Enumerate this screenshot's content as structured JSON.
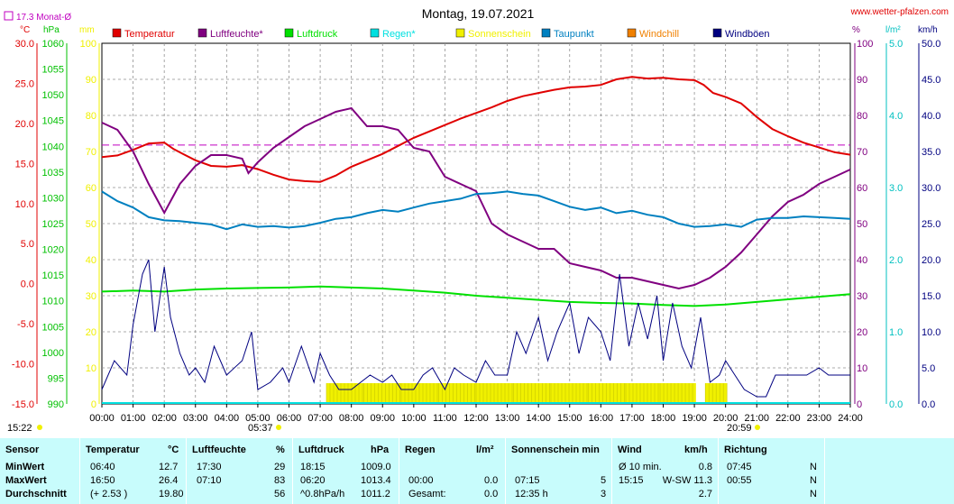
{
  "header": {
    "title": "Montag, 19.07.2021",
    "site": "www.wetter-pfalzen.com",
    "month_avg_label": "17.3 Monat-Ø"
  },
  "axes": {
    "temp_unit": "°C",
    "pressure_unit": "hPa",
    "mm_unit": "mm",
    "humidity_unit": "%",
    "rain_unit": "l/m²",
    "wind_unit": "km/h",
    "temp_ticks": [
      "30.0",
      "25.0",
      "20.0",
      "15.0",
      "10.0",
      "5.0",
      "0.0",
      "-5.0",
      "-10.0",
      "-15.0"
    ],
    "pressure_ticks": [
      "1060",
      "1055",
      "1050",
      "1045",
      "1040",
      "1035",
      "1030",
      "1025",
      "1020",
      "1015",
      "1010",
      "1005",
      "1000",
      "995",
      "990"
    ],
    "mm_ticks": [
      "100",
      "90",
      "80",
      "70",
      "60",
      "50",
      "40",
      "30",
      "20",
      "10",
      "0"
    ],
    "humidity_ticks": [
      "100",
      "90",
      "80",
      "70",
      "60",
      "50",
      "40",
      "30",
      "20",
      "10",
      "0"
    ],
    "rain_ticks": [
      "5.0",
      "4.0",
      "3.0",
      "2.0",
      "1.0",
      "0.0"
    ],
    "wind_ticks": [
      "50.0",
      "45.0",
      "40.0",
      "35.0",
      "30.0",
      "25.0",
      "20.0",
      "15.0",
      "10.0",
      "5.0",
      "0.0"
    ],
    "time_ticks": [
      "00:00",
      "01:00",
      "02:00",
      "03:00",
      "04:00",
      "05:00",
      "06:00",
      "07:00",
      "08:00",
      "09:00",
      "10:00",
      "11:00",
      "12:00",
      "13:00",
      "14:00",
      "15:00",
      "16:00",
      "17:00",
      "18:00",
      "19:00",
      "20:00",
      "21:00",
      "22:00",
      "23:00",
      "24:00"
    ],
    "sunrise": "05:37",
    "sunset": "20:59",
    "moonrise": "15:22"
  },
  "legend": [
    {
      "label": "Temperatur",
      "color": "#e00000"
    },
    {
      "label": "Luftfeuchte*",
      "color": "#800080"
    },
    {
      "label": "Luftdruck",
      "color": "#00e000"
    },
    {
      "label": "Regen*",
      "color": "#00e0e0"
    },
    {
      "label": "Sonnenschein",
      "color": "#f0f000"
    },
    {
      "label": "Taupunkt",
      "color": "#0080c0"
    },
    {
      "label": "Windchill",
      "color": "#f08000"
    },
    {
      "label": "Windböen",
      "color": "#000080"
    }
  ],
  "colors": {
    "temp_axis": "#e00000",
    "pressure_axis": "#00c000",
    "mm_axis": "#f0f000",
    "humidity_axis": "#800080",
    "rain_axis": "#00c0c0",
    "wind_axis": "#000080",
    "month_avg": "#c000c0",
    "grid": "#909090"
  },
  "chart_data": {
    "type": "line",
    "x_unit": "hours",
    "month_avg_temp": 17.3,
    "series": [
      {
        "name": "Temperatur",
        "axis": "temp",
        "color": "#e00000",
        "points": [
          [
            0,
            15.8
          ],
          [
            0.5,
            16.0
          ],
          [
            1,
            16.7
          ],
          [
            1.5,
            17.5
          ],
          [
            2,
            17.6
          ],
          [
            2.3,
            16.8
          ],
          [
            2.6,
            16.2
          ],
          [
            3,
            15.4
          ],
          [
            3.5,
            14.7
          ],
          [
            4,
            14.6
          ],
          [
            4.5,
            14.8
          ],
          [
            5,
            14.3
          ],
          [
            5.5,
            13.6
          ],
          [
            6,
            13.0
          ],
          [
            6.5,
            12.8
          ],
          [
            7,
            12.7
          ],
          [
            7.5,
            13.5
          ],
          [
            8,
            14.6
          ],
          [
            8.5,
            15.4
          ],
          [
            9,
            16.2
          ],
          [
            9.5,
            17.2
          ],
          [
            10,
            18.2
          ],
          [
            10.5,
            19.0
          ],
          [
            11,
            19.8
          ],
          [
            11.5,
            20.6
          ],
          [
            12,
            21.3
          ],
          [
            12.5,
            22.0
          ],
          [
            13,
            22.8
          ],
          [
            13.5,
            23.4
          ],
          [
            14,
            23.8
          ],
          [
            14.5,
            24.2
          ],
          [
            15,
            24.5
          ],
          [
            15.5,
            24.6
          ],
          [
            16,
            24.8
          ],
          [
            16.5,
            25.5
          ],
          [
            17,
            25.8
          ],
          [
            17.5,
            25.6
          ],
          [
            18,
            25.7
          ],
          [
            18.5,
            25.5
          ],
          [
            19,
            25.4
          ],
          [
            19.3,
            24.8
          ],
          [
            19.6,
            23.8
          ],
          [
            20,
            23.3
          ],
          [
            20.5,
            22.5
          ],
          [
            21,
            20.8
          ],
          [
            21.5,
            19.3
          ],
          [
            22,
            18.4
          ],
          [
            22.5,
            17.6
          ],
          [
            23,
            17.0
          ],
          [
            23.5,
            16.4
          ],
          [
            24,
            16.1
          ]
        ]
      },
      {
        "name": "Luftfeuchte*",
        "axis": "humidity",
        "color": "#800080",
        "points": [
          [
            0,
            78
          ],
          [
            0.5,
            76
          ],
          [
            1,
            70
          ],
          [
            1.5,
            61
          ],
          [
            2,
            53
          ],
          [
            2.5,
            61
          ],
          [
            3,
            66
          ],
          [
            3.5,
            69
          ],
          [
            4,
            69
          ],
          [
            4.5,
            68
          ],
          [
            4.7,
            64
          ],
          [
            5,
            67
          ],
          [
            5.5,
            71
          ],
          [
            6,
            74
          ],
          [
            6.5,
            77
          ],
          [
            7,
            79
          ],
          [
            7.5,
            81
          ],
          [
            8,
            82
          ],
          [
            8.5,
            77
          ],
          [
            9,
            77
          ],
          [
            9.5,
            76
          ],
          [
            10,
            71
          ],
          [
            10.5,
            70
          ],
          [
            11,
            63
          ],
          [
            11.5,
            61
          ],
          [
            12,
            59
          ],
          [
            12.5,
            50
          ],
          [
            13,
            47
          ],
          [
            13.5,
            45
          ],
          [
            14,
            43
          ],
          [
            14.5,
            43
          ],
          [
            15,
            39
          ],
          [
            15.5,
            38
          ],
          [
            16,
            37
          ],
          [
            16.5,
            35
          ],
          [
            17,
            35
          ],
          [
            17.5,
            34
          ],
          [
            18,
            33
          ],
          [
            18.5,
            32
          ],
          [
            19,
            33
          ],
          [
            19.5,
            35
          ],
          [
            20,
            38
          ],
          [
            20.5,
            42
          ],
          [
            21,
            47
          ],
          [
            21.5,
            52
          ],
          [
            22,
            56
          ],
          [
            22.5,
            58
          ],
          [
            23,
            61
          ],
          [
            23.5,
            63
          ],
          [
            24,
            65
          ]
        ]
      },
      {
        "name": "Luftdruck",
        "axis": "pressure",
        "color": "#00e000",
        "points": [
          [
            0,
            1011.8
          ],
          [
            1,
            1012.0
          ],
          [
            2,
            1011.8
          ],
          [
            3,
            1012.2
          ],
          [
            4,
            1012.4
          ],
          [
            5,
            1012.5
          ],
          [
            6,
            1012.6
          ],
          [
            7,
            1012.8
          ],
          [
            8,
            1012.6
          ],
          [
            9,
            1012.4
          ],
          [
            10,
            1012.0
          ],
          [
            11,
            1011.6
          ],
          [
            12,
            1011.0
          ],
          [
            13,
            1010.6
          ],
          [
            14,
            1010.2
          ],
          [
            15,
            1009.8
          ],
          [
            16,
            1009.6
          ],
          [
            17,
            1009.5
          ],
          [
            18,
            1009.2
          ],
          [
            19,
            1009.0
          ],
          [
            20,
            1009.3
          ],
          [
            21,
            1009.8
          ],
          [
            22,
            1010.3
          ],
          [
            23,
            1010.8
          ],
          [
            24,
            1011.3
          ]
        ]
      },
      {
        "name": "Taupunkt",
        "axis": "temp",
        "color": "#0080c0",
        "points": [
          [
            0,
            11.5
          ],
          [
            0.5,
            10.3
          ],
          [
            1,
            9.5
          ],
          [
            1.5,
            8.3
          ],
          [
            2,
            7.9
          ],
          [
            2.5,
            7.8
          ],
          [
            3,
            7.6
          ],
          [
            3.5,
            7.4
          ],
          [
            4,
            6.8
          ],
          [
            4.5,
            7.4
          ],
          [
            5,
            7.1
          ],
          [
            5.5,
            7.2
          ],
          [
            6,
            7.0
          ],
          [
            6.5,
            7.2
          ],
          [
            7,
            7.6
          ],
          [
            7.5,
            8.1
          ],
          [
            8,
            8.3
          ],
          [
            8.5,
            8.8
          ],
          [
            9,
            9.2
          ],
          [
            9.5,
            9.0
          ],
          [
            10,
            9.5
          ],
          [
            10.5,
            10.0
          ],
          [
            11,
            10.3
          ],
          [
            11.5,
            10.6
          ],
          [
            12,
            11.2
          ],
          [
            12.5,
            11.3
          ],
          [
            13,
            11.5
          ],
          [
            13.5,
            11.2
          ],
          [
            14,
            11.0
          ],
          [
            14.5,
            10.3
          ],
          [
            15,
            9.6
          ],
          [
            15.5,
            9.2
          ],
          [
            16,
            9.5
          ],
          [
            16.5,
            8.8
          ],
          [
            17,
            9.1
          ],
          [
            17.5,
            8.6
          ],
          [
            18,
            8.3
          ],
          [
            18.5,
            7.5
          ],
          [
            19,
            7.1
          ],
          [
            19.5,
            7.2
          ],
          [
            20,
            7.4
          ],
          [
            20.5,
            7.1
          ],
          [
            21,
            8.0
          ],
          [
            21.5,
            8.2
          ],
          [
            22,
            8.2
          ],
          [
            22.5,
            8.4
          ],
          [
            23,
            8.3
          ],
          [
            23.5,
            8.2
          ],
          [
            24,
            8.1
          ]
        ]
      },
      {
        "name": "Windböen",
        "axis": "wind",
        "color": "#000080",
        "points": [
          [
            0,
            2
          ],
          [
            0.4,
            6
          ],
          [
            0.8,
            4
          ],
          [
            1,
            11
          ],
          [
            1.3,
            18
          ],
          [
            1.5,
            20
          ],
          [
            1.7,
            10
          ],
          [
            2,
            19
          ],
          [
            2.2,
            12
          ],
          [
            2.5,
            7
          ],
          [
            2.8,
            4
          ],
          [
            3,
            5
          ],
          [
            3.3,
            3
          ],
          [
            3.6,
            8
          ],
          [
            4,
            4
          ],
          [
            4.5,
            6
          ],
          [
            4.8,
            10
          ],
          [
            5,
            2
          ],
          [
            5.4,
            3
          ],
          [
            5.8,
            5
          ],
          [
            6,
            3
          ],
          [
            6.4,
            8
          ],
          [
            6.8,
            3
          ],
          [
            7,
            7
          ],
          [
            7.3,
            4
          ],
          [
            7.6,
            2
          ],
          [
            8,
            2
          ],
          [
            8.3,
            3
          ],
          [
            8.6,
            4
          ],
          [
            9,
            3
          ],
          [
            9.3,
            4
          ],
          [
            9.6,
            2
          ],
          [
            10,
            2
          ],
          [
            10.3,
            4
          ],
          [
            10.6,
            5
          ],
          [
            11,
            2
          ],
          [
            11.3,
            5
          ],
          [
            11.6,
            4
          ],
          [
            12,
            3
          ],
          [
            12.3,
            6
          ],
          [
            12.6,
            4
          ],
          [
            13,
            4
          ],
          [
            13.3,
            10
          ],
          [
            13.6,
            7
          ],
          [
            14,
            12
          ],
          [
            14.3,
            6
          ],
          [
            14.6,
            10
          ],
          [
            15,
            14
          ],
          [
            15.3,
            7
          ],
          [
            15.6,
            12
          ],
          [
            16,
            10
          ],
          [
            16.3,
            6
          ],
          [
            16.6,
            18
          ],
          [
            16.9,
            8
          ],
          [
            17.2,
            14
          ],
          [
            17.5,
            9
          ],
          [
            17.8,
            15
          ],
          [
            18,
            6
          ],
          [
            18.3,
            14
          ],
          [
            18.6,
            8
          ],
          [
            18.9,
            5
          ],
          [
            19.2,
            12
          ],
          [
            19.5,
            3
          ],
          [
            19.8,
            4
          ],
          [
            20,
            6
          ],
          [
            20.3,
            4
          ],
          [
            20.6,
            2
          ],
          [
            21,
            1
          ],
          [
            21.3,
            1
          ],
          [
            21.6,
            4
          ],
          [
            22,
            4
          ],
          [
            22.3,
            4
          ],
          [
            22.6,
            4
          ],
          [
            23,
            5
          ],
          [
            23.3,
            4
          ],
          [
            23.6,
            4
          ],
          [
            24,
            4
          ]
        ]
      }
    ],
    "sunshine_bars": [
      [
        7.2,
        8.4
      ],
      [
        8.4,
        9.6
      ],
      [
        9.6,
        10.8
      ],
      [
        10.8,
        12.0
      ],
      [
        12.0,
        13.2
      ],
      [
        13.2,
        14.4
      ],
      [
        14.4,
        15.6
      ],
      [
        15.6,
        16.8
      ],
      [
        16.8,
        17.9
      ],
      [
        17.9,
        19.05
      ],
      [
        19.35,
        20.05
      ]
    ],
    "sunshine_height_mm": 5
  },
  "stats": {
    "headers": [
      "Sensor",
      "Temperatur",
      "°C",
      "Luftfeuchte",
      "%",
      "Luftdruck",
      "hPa",
      "Regen",
      "l/m²",
      "Sonnenschein min",
      "Wind",
      "km/h",
      "Richtung"
    ],
    "rows": [
      {
        "label": "MinWert",
        "t_time": "06:40",
        "t_val": "12.7",
        "h_time": "17:30",
        "h_val": "29",
        "p_time": "18:15",
        "p_val": "1009.0",
        "r_time": "",
        "r_val": "",
        "s_time": "",
        "s_val": "",
        "w_time": "Ø 10 min.",
        "w_val": "0.8",
        "d_time": "07:45",
        "d_val": "N"
      },
      {
        "label": "MaxWert",
        "t_time": "16:50",
        "t_val": "26.4",
        "h_time": "07:10",
        "h_val": "83",
        "p_time": "06:20",
        "p_val": "1013.4",
        "r_time": "00:00",
        "r_val": "0.0",
        "s_time": "07:15",
        "s_val": "5",
        "w_time": "15:15",
        "w_val": "W-SW 11.3",
        "d_time": "00:55",
        "d_val": "N"
      },
      {
        "label": "Durchschnitt",
        "t_time": "(+ 2.53 )",
        "t_val": "19.80",
        "h_time": "",
        "h_val": "56",
        "p_time": "^0.8hPa/h",
        "p_val": "1011.2",
        "r_time": "Gesamt:",
        "r_val": "0.0",
        "s_time": "12:35 h",
        "s_val": "3",
        "w_time": "",
        "w_val": "2.7",
        "d_time": "",
        "d_val": "N"
      }
    ]
  }
}
